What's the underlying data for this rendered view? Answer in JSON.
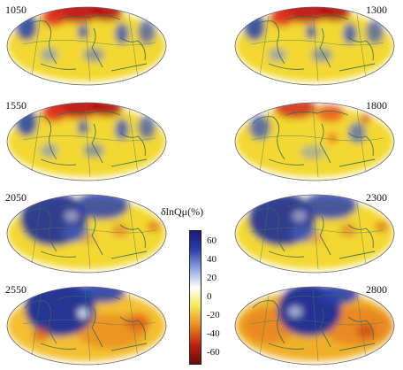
{
  "panels": [
    {
      "depth": "1050",
      "dominant": "warm-north"
    },
    {
      "depth": "1300",
      "dominant": "warm-north"
    },
    {
      "depth": "1550",
      "dominant": "warm-north"
    },
    {
      "depth": "1800",
      "dominant": "warm-north-weak"
    },
    {
      "depth": "2050",
      "dominant": "cool-west"
    },
    {
      "depth": "2300",
      "dominant": "cool-west"
    },
    {
      "depth": "2550",
      "dominant": "cool-west-orange"
    },
    {
      "depth": "2800",
      "dominant": "cool-center-orange"
    }
  ],
  "colorbar": {
    "title": "δlnQμ(%)",
    "ticks": [
      "60",
      "40",
      "20",
      "0",
      "-20",
      "-40",
      "-60"
    ],
    "colors": [
      "#1a1a7a",
      "#2a3fb0",
      "#8fa6e0",
      "#ffffff",
      "#f6e64a",
      "#e88a20",
      "#c02010",
      "#6a0a0a"
    ]
  }
}
